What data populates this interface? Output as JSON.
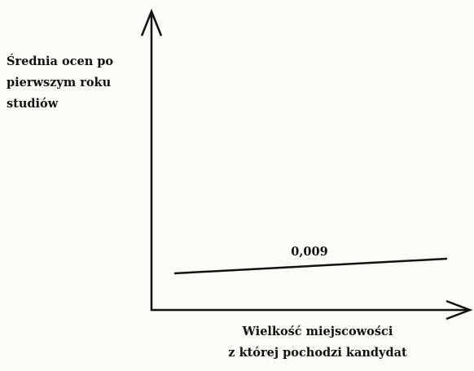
{
  "y_axis_label": {
    "lines": [
      "Średnia ocen po",
      "pierwszym roku",
      "studiów"
    ]
  },
  "line_label": "0,009",
  "x_axis_label": {
    "lines": [
      "Wielkość miejscowości",
      "z której pochodzi kandydat"
    ]
  }
}
